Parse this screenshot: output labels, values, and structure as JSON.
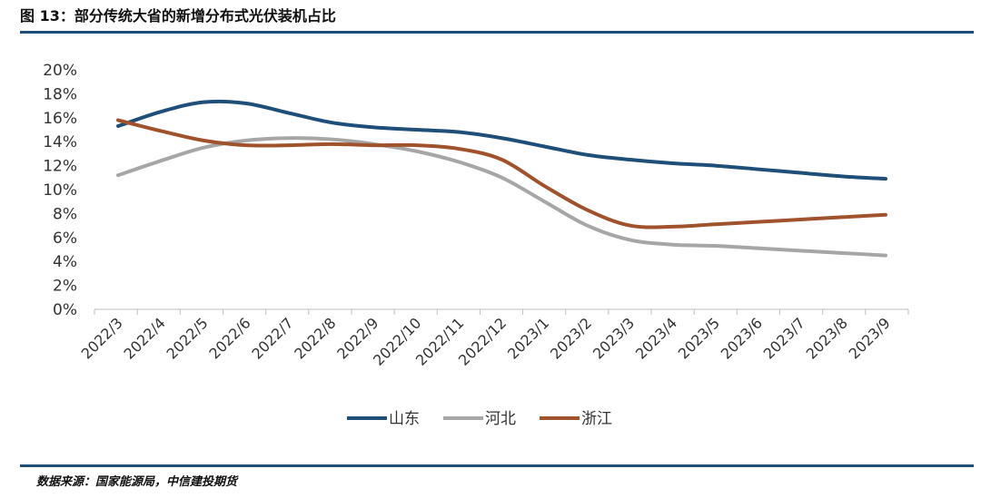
{
  "header": {
    "title": "图 13：部分传统大省的新增分布式光伏装机占比"
  },
  "footer": {
    "source": "数据来源：国家能源局，中信建投期货"
  },
  "chart_data": {
    "type": "line",
    "title": "图 13：部分传统大省的新增分布式光伏装机占比",
    "xlabel": "",
    "ylabel": "",
    "ylim": [
      0,
      0.2
    ],
    "yticks": [
      "0%",
      "2%",
      "4%",
      "6%",
      "8%",
      "10%",
      "12%",
      "14%",
      "16%",
      "18%",
      "20%"
    ],
    "grid": false,
    "legend_position": "bottom",
    "categories": [
      "2022/3",
      "2022/4",
      "2022/5",
      "2022/6",
      "2022/7",
      "2022/8",
      "2022/9",
      "2022/10",
      "2022/11",
      "2022/12",
      "2023/1",
      "2023/2",
      "2023/3",
      "2023/4",
      "2023/5",
      "2023/6",
      "2023/7",
      "2023/8",
      "2023/9"
    ],
    "series": [
      {
        "name": "山东",
        "color": "#1f4e79",
        "values": [
          0.153,
          0.165,
          0.173,
          0.172,
          0.164,
          0.156,
          0.152,
          0.15,
          0.148,
          0.143,
          0.136,
          0.129,
          0.125,
          0.122,
          0.12,
          0.117,
          0.114,
          0.111,
          0.109
        ]
      },
      {
        "name": "河北",
        "color": "#a6a6a6",
        "values": [
          0.112,
          0.124,
          0.135,
          0.141,
          0.143,
          0.142,
          0.138,
          0.132,
          0.123,
          0.11,
          0.09,
          0.07,
          0.058,
          0.054,
          0.053,
          0.051,
          0.049,
          0.047,
          0.045
        ]
      },
      {
        "name": "浙江",
        "color": "#a0522d",
        "values": [
          0.158,
          0.149,
          0.141,
          0.137,
          0.137,
          0.138,
          0.137,
          0.137,
          0.134,
          0.125,
          0.103,
          0.083,
          0.07,
          0.069,
          0.071,
          0.073,
          0.075,
          0.077,
          0.079
        ]
      }
    ]
  }
}
